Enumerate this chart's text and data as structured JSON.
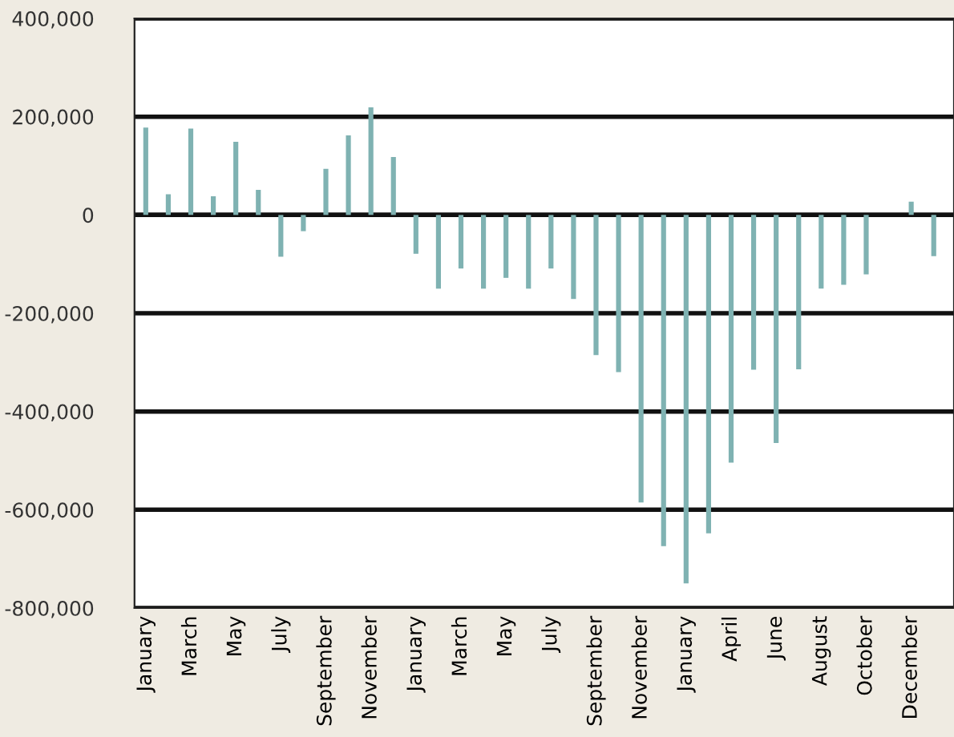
{
  "chart_data": {
    "type": "bar",
    "categories": [
      "January",
      null,
      "March",
      null,
      "May",
      null,
      "July",
      null,
      "September",
      null,
      "November",
      null,
      "January",
      null,
      "March",
      null,
      "May",
      null,
      "July",
      null,
      "September",
      null,
      "November",
      null,
      "January",
      null,
      "April",
      null,
      "June",
      null,
      "August",
      null,
      "October",
      null,
      "December",
      null
    ],
    "values": [
      178000,
      42000,
      176000,
      38000,
      149000,
      51000,
      -85000,
      -33000,
      94000,
      162000,
      219000,
      118000,
      -79000,
      -150000,
      -109000,
      -150000,
      -128000,
      -150000,
      -109000,
      -171000,
      -285000,
      -320000,
      -585000,
      -674000,
      -750000,
      -648000,
      -504000,
      -315000,
      -464000,
      -314000,
      -150000,
      -142000,
      -121000,
      0,
      27000,
      -84000
    ],
    "color": "#7fb2b2",
    "ylim": [
      -800000,
      400000
    ],
    "yticks": [
      {
        "value": -800000,
        "label": "-800,000"
      },
      {
        "value": -600000,
        "label": "-600,000"
      },
      {
        "value": -400000,
        "label": "-400,000"
      },
      {
        "value": -200000,
        "label": "-200,000"
      },
      0,
      {
        "value": 200000,
        "label": "200,000"
      },
      {
        "value": 400000,
        "label": "400,000"
      }
    ],
    "grid": "y",
    "legend": false
  }
}
